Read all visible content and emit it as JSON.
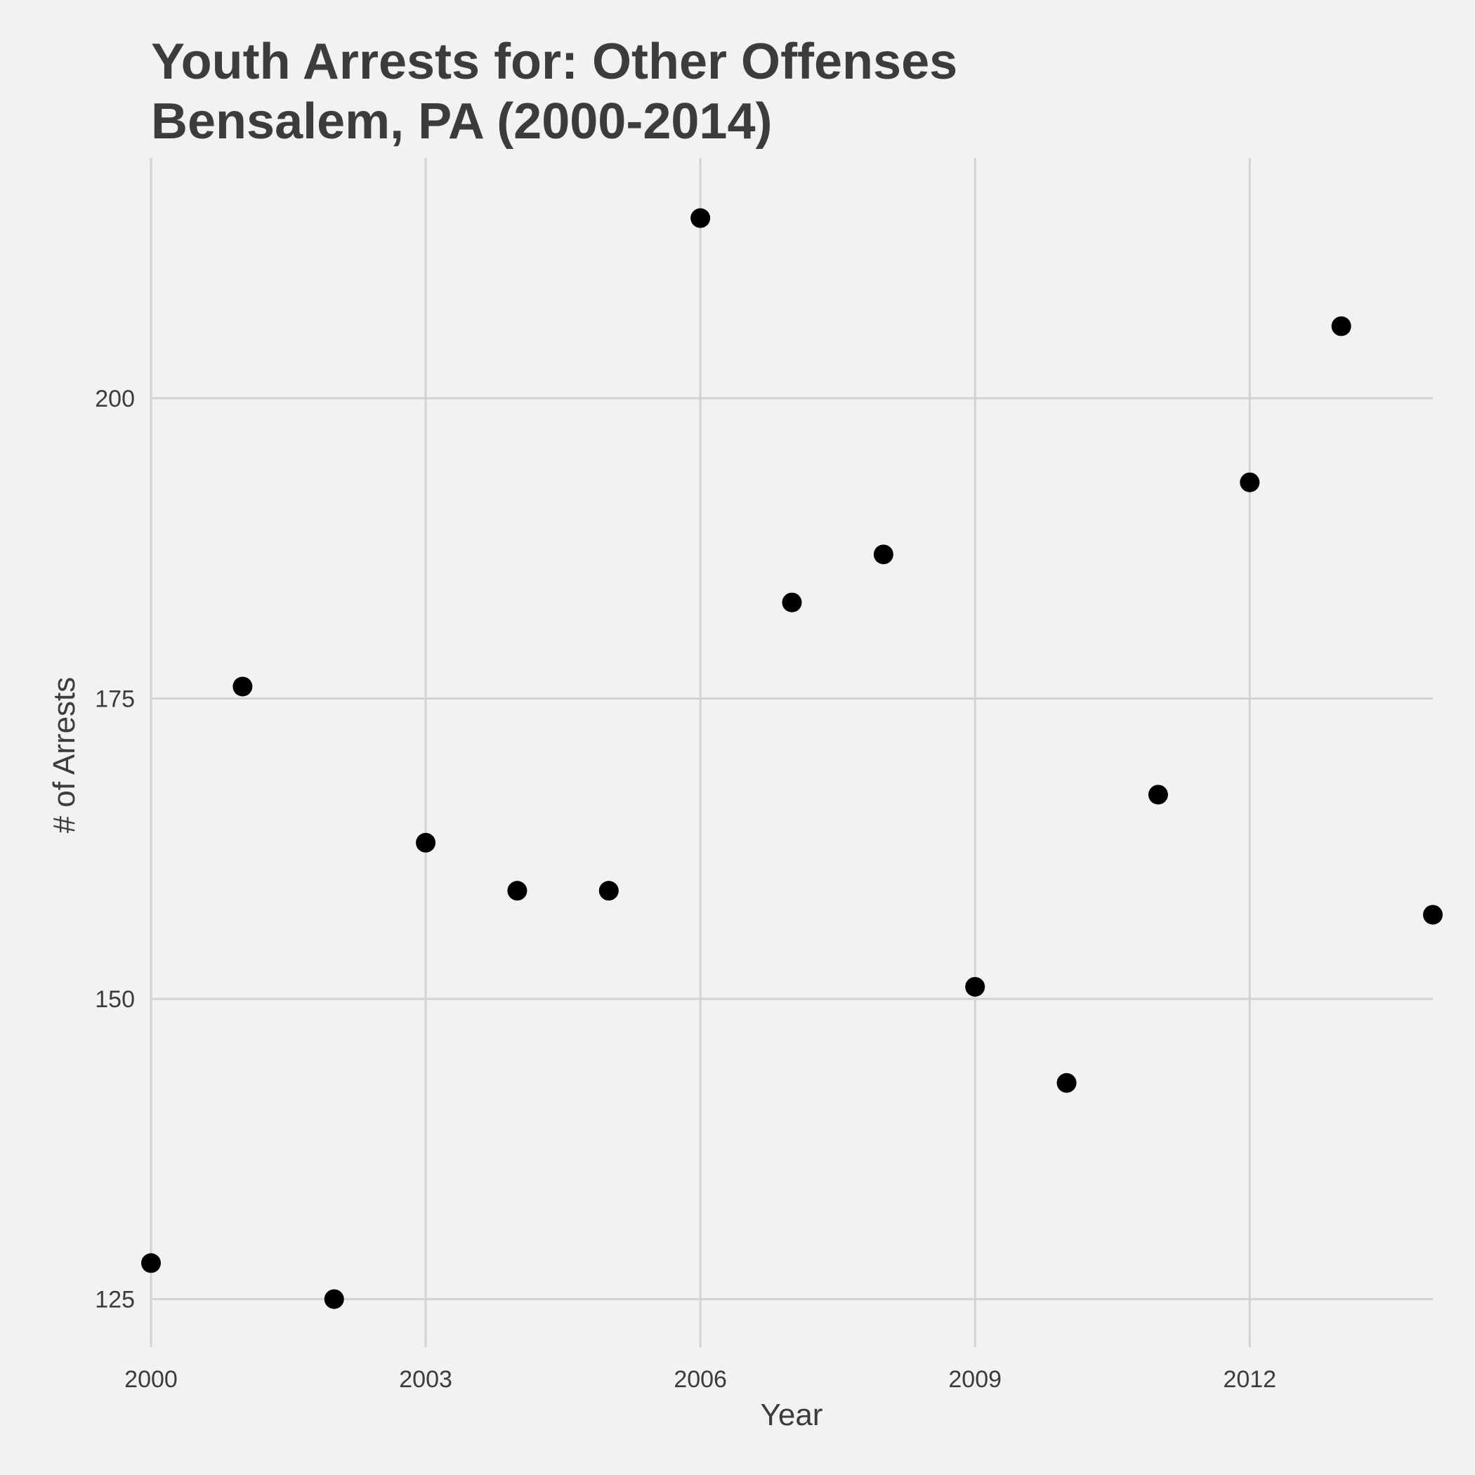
{
  "chart_data": {
    "type": "scatter",
    "title": "Youth Arrests for: Other Offenses",
    "subtitle": "Bensalem, PA (2000-2014)",
    "xlabel": "Year",
    "ylabel": "# of Arrests",
    "x": [
      2000,
      2001,
      2002,
      2003,
      2004,
      2005,
      2006,
      2007,
      2008,
      2009,
      2010,
      2011,
      2012,
      2013,
      2014
    ],
    "y": [
      128,
      176,
      125,
      163,
      159,
      159,
      215,
      183,
      187,
      151,
      143,
      167,
      193,
      206,
      157
    ],
    "xlim": [
      2000,
      2014
    ],
    "ylim": [
      121,
      220
    ],
    "xticks": [
      2000,
      2003,
      2006,
      2009,
      2012
    ],
    "yticks": [
      125,
      150,
      175,
      200
    ],
    "grid": true,
    "colors": {
      "point": "#000000",
      "grid": "#d2d2d2",
      "background": "#f2f2f2",
      "text": "#3c3c3c"
    }
  }
}
